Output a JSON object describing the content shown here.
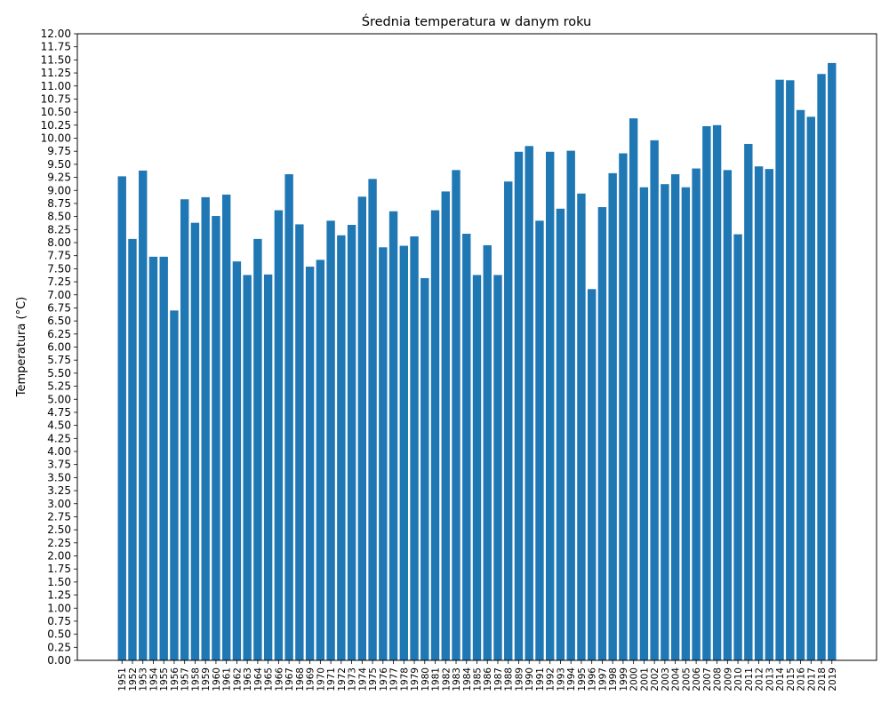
{
  "chart_data": {
    "type": "bar",
    "title": "Średnia temperatura w danym roku",
    "xlabel": "",
    "ylabel": "Temperatura (°C)",
    "ylim": [
      0,
      12
    ],
    "ytick_step": 0.25,
    "grid": false,
    "bar_color": "#1f77b4",
    "categories": [
      "1951",
      "1952",
      "1953",
      "1954",
      "1955",
      "1956",
      "1957",
      "1958",
      "1959",
      "1960",
      "1961",
      "1962",
      "1963",
      "1964",
      "1965",
      "1966",
      "1967",
      "1968",
      "1969",
      "1970",
      "1971",
      "1972",
      "1973",
      "1974",
      "1975",
      "1976",
      "1977",
      "1978",
      "1979",
      "1980",
      "1981",
      "1982",
      "1983",
      "1984",
      "1985",
      "1986",
      "1987",
      "1988",
      "1989",
      "1990",
      "1991",
      "1992",
      "1993",
      "1994",
      "1995",
      "1996",
      "1997",
      "1998",
      "1999",
      "2000",
      "2001",
      "2002",
      "2003",
      "2004",
      "2005",
      "2006",
      "2007",
      "2008",
      "2009",
      "2010",
      "2011",
      "2012",
      "2013",
      "2014",
      "2015",
      "2016",
      "2017",
      "2018",
      "2019"
    ],
    "values": [
      9.27,
      8.07,
      9.38,
      7.73,
      7.73,
      6.7,
      8.83,
      8.38,
      8.87,
      8.51,
      8.92,
      7.64,
      7.38,
      8.07,
      7.39,
      8.62,
      9.31,
      8.35,
      7.54,
      7.67,
      8.42,
      8.14,
      8.34,
      8.88,
      9.22,
      7.91,
      8.6,
      7.94,
      8.12,
      7.32,
      8.62,
      8.98,
      9.39,
      8.17,
      7.38,
      7.95,
      7.38,
      9.17,
      9.74,
      9.85,
      8.42,
      9.74,
      8.65,
      9.76,
      8.94,
      7.11,
      8.68,
      9.33,
      9.71,
      10.38,
      9.06,
      9.96,
      9.12,
      9.31,
      9.06,
      9.42,
      10.23,
      10.25,
      9.39,
      8.16,
      9.89,
      9.46,
      9.41,
      11.12,
      11.11,
      10.54,
      10.41,
      11.23,
      11.44
    ]
  }
}
